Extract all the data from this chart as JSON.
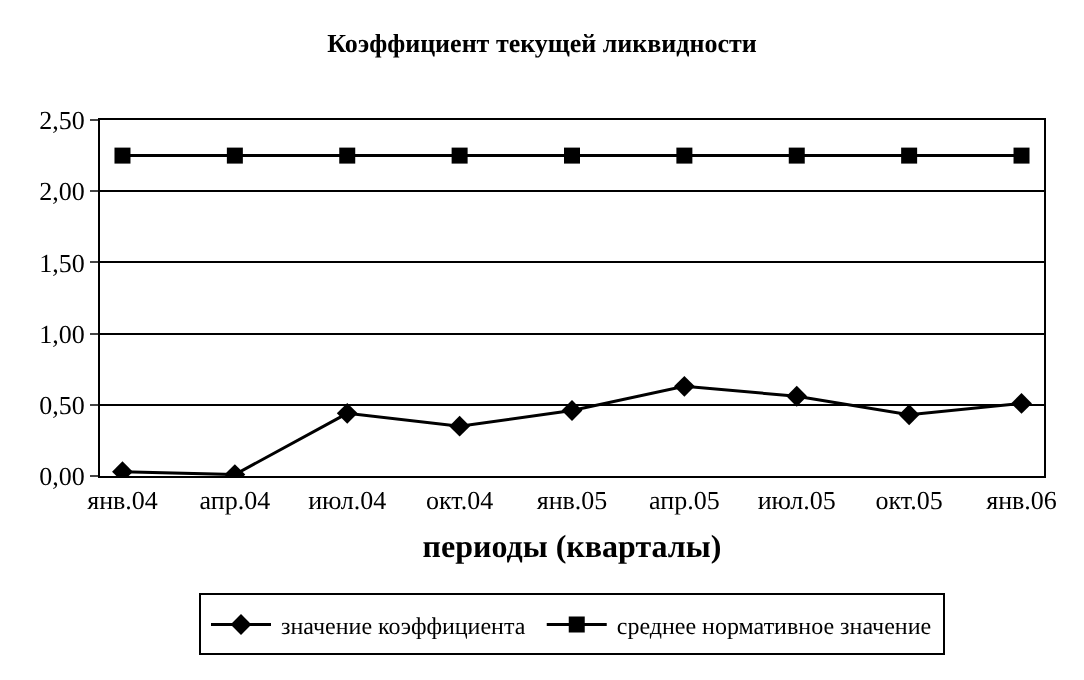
{
  "chart_data": {
    "type": "line",
    "title": "Коэффициент текущей ликвидности",
    "xlabel": "периоды (кварталы)",
    "categories": [
      "янв.04",
      "апр.04",
      "июл.04",
      "окт.04",
      "янв.05",
      "апр.05",
      "июл.05",
      "окт.05",
      "янв.06"
    ],
    "series": [
      {
        "name": "значение коэффициента",
        "color": "#000000",
        "marker": "diamond",
        "values": [
          0.03,
          0.01,
          0.44,
          0.35,
          0.46,
          0.63,
          0.56,
          0.43,
          0.51
        ]
      },
      {
        "name": "среднее нормативное значение",
        "color": "#000000",
        "marker": "square",
        "values": [
          2.25,
          2.25,
          2.25,
          2.25,
          2.25,
          2.25,
          2.25,
          2.25,
          2.25
        ]
      }
    ],
    "ylim": [
      0,
      2.5
    ],
    "yticks": [
      {
        "value": 0,
        "label": "0,00"
      },
      {
        "value": 0.5,
        "label": "0,50"
      },
      {
        "value": 1,
        "label": "1,00"
      },
      {
        "value": 1.5,
        "label": "1,50"
      },
      {
        "value": 2,
        "label": "2,00"
      },
      {
        "value": 2.5,
        "label": "2,50"
      }
    ],
    "grid": "y",
    "legend": "bottom",
    "line_style": "solid"
  }
}
